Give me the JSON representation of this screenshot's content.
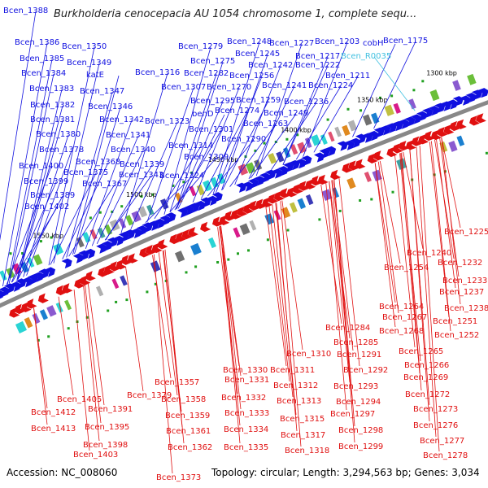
{
  "title": "Burkholderia cenocepacia AU 1054 chromosome 1, complete sequ...",
  "footer": {
    "accession": "Accession: NC_008060",
    "summary": "Topology: circular; Length: 3,294,563 bp; Genes: 3,034"
  },
  "colors": {
    "forward": "#1010e0",
    "reverse": "#e01010",
    "rna": "#40c0e0",
    "backbone": "#808080"
  },
  "kbp_ticks": [
    "1300 kbp",
    "1350 kbp",
    "1400 kbp",
    "1450 kbp",
    "1500 kbp",
    "1550 kbp"
  ],
  "forward_labels": [
    "Bcen_1388",
    "Bcen_1386",
    "Bcen_1350",
    "Bcen_1385",
    "Bcen_1349",
    "Bcen_1384",
    "katE",
    "Bcen_1383",
    "Bcen_1347",
    "Bcen_1382",
    "Bcen_1346",
    "Bcen_1381",
    "Bcen_1342",
    "Bcen_1380",
    "Bcen_1341",
    "Bcen_1378",
    "Bcen_1340",
    "Bcen_1368",
    "Bcen_1400",
    "Bcen_1339",
    "Bcen_1375",
    "Bcen_1343",
    "Bcen_1399",
    "Bcen_1367",
    "Bcen_1389",
    "Bcen_1402",
    "Bcen_1279",
    "Bcen_1248",
    "Bcen_1227",
    "Bcen_1203",
    "cobH",
    "Bcen_1175",
    "Bcen_1275",
    "Bcen_1245",
    "Bcen_1217",
    "Bcen_1282",
    "Bcen_1242",
    "Bcen_1222",
    "Bcen_1316",
    "Bcen_1256",
    "Bcen_1211",
    "Bcen_1307",
    "Bcen_1270",
    "Bcen_1241",
    "Bcen_1224",
    "Bcen_1295",
    "Bcen_1259",
    "Bcen_1236",
    "benD",
    "Bcen_1274",
    "Bcen_1249",
    "Bcen_1323",
    "Bcen_1263",
    "Bcen_1301",
    "Bcen_1290",
    "Bcen_1314",
    "Bcen_1309",
    "Bcen_1324"
  ],
  "rna_labels": [
    "Bcen_R0035"
  ],
  "reverse_labels": [
    "Bcen_1225",
    "Bcen_1240",
    "Bcen_1254",
    "Bcen_1232",
    "Bcen_1233",
    "Bcen_1237",
    "Bcen_1238",
    "Bcen_1264",
    "Bcen_1267",
    "Bcen_1251",
    "Bcen_1268",
    "Bcen_1252",
    "Bcen_1284",
    "Bcen_1285",
    "Bcen_1265",
    "Bcen_1310",
    "Bcen_1291",
    "Bcen_1266",
    "Bcen_1311",
    "Bcen_1292",
    "Bcen_1269",
    "Bcen_1330",
    "Bcen_1331",
    "Bcen_1312",
    "Bcen_1293",
    "Bcen_1357",
    "Bcen_1358",
    "Bcen_1332",
    "Bcen_1313",
    "Bcen_1294",
    "Bcen_1272",
    "Bcen_1379",
    "Bcen_1405",
    "Bcen_1391",
    "Bcen_1359",
    "Bcen_1333",
    "Bcen_1297",
    "Bcen_1273",
    "Bcen_1412",
    "Bcen_1413",
    "Bcen_1395",
    "Bcen_1361",
    "Bcen_1334",
    "Bcen_1315",
    "Bcen_1298",
    "Bcen_1276",
    "Bcen_1317",
    "Bcen_1398",
    "Bcen_1362",
    "Bcen_1335",
    "Bcen_1318",
    "Bcen_1299",
    "Bcen_1277",
    "Bcen_1403",
    "Bcen_1278",
    "Bcen_1373"
  ]
}
